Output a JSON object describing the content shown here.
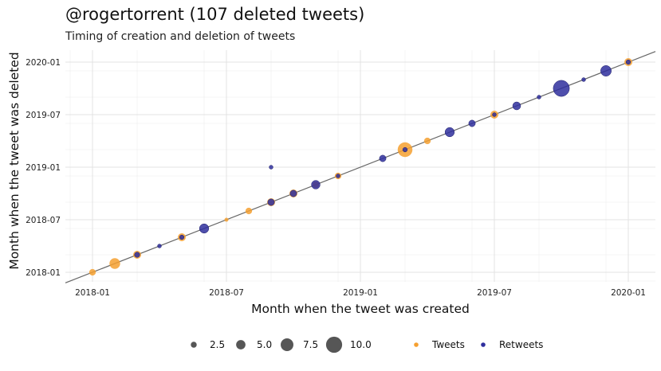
{
  "chart_data": {
    "type": "scatter",
    "title": "@rogertorrent (107 deleted tweets)",
    "subtitle": "Timing of creation and deletion of tweets",
    "xlabel": "Month when the tweet was created",
    "ylabel": "Month when the tweet was deleted",
    "x_ticks": [
      "2018-01",
      "2018-07",
      "2019-01",
      "2019-07",
      "2020-01"
    ],
    "y_ticks": [
      "2018-01",
      "2018-07",
      "2019-01",
      "2019-07",
      "2020-01"
    ],
    "xlim": [
      "2017-11",
      "2020-02"
    ],
    "ylim": [
      "2017-12",
      "2020-02"
    ],
    "reference_line": "y = x",
    "grid": true,
    "legend_position": "bottom",
    "size_legend": {
      "values": [
        2.5,
        5.0,
        7.5,
        10.0
      ],
      "labels": [
        "2.5",
        "5.0",
        "7.5",
        "10.0"
      ]
    },
    "series": [
      {
        "name": "Tweets",
        "color": "#f5a030",
        "points": [
          {
            "x": "2018-01",
            "y": "2018-01",
            "size": 3
          },
          {
            "x": "2018-02",
            "y": "2018-02",
            "size": 6
          },
          {
            "x": "2018-03",
            "y": "2018-03",
            "size": 4
          },
          {
            "x": "2018-05",
            "y": "2018-05",
            "size": 4
          },
          {
            "x": "2018-07",
            "y": "2018-07",
            "size": 1
          },
          {
            "x": "2018-08",
            "y": "2018-08",
            "size": 3
          },
          {
            "x": "2018-09",
            "y": "2018-09",
            "size": 4
          },
          {
            "x": "2018-10",
            "y": "2018-10",
            "size": 4
          },
          {
            "x": "2018-11",
            "y": "2018-11",
            "size": 3
          },
          {
            "x": "2018-12",
            "y": "2018-12",
            "size": 3
          },
          {
            "x": "2019-03",
            "y": "2019-03",
            "size": 9
          },
          {
            "x": "2019-04",
            "y": "2019-04",
            "size": 3
          },
          {
            "x": "2019-07",
            "y": "2019-07",
            "size": 4
          },
          {
            "x": "2020-01",
            "y": "2020-01",
            "size": 4
          }
        ]
      },
      {
        "name": "Retweets",
        "color": "#2f2f9e",
        "points": [
          {
            "x": "2018-03",
            "y": "2018-03",
            "size": 2
          },
          {
            "x": "2018-04",
            "y": "2018-04",
            "size": 1
          },
          {
            "x": "2018-05",
            "y": "2018-05",
            "size": 1.5
          },
          {
            "x": "2018-06",
            "y": "2018-06",
            "size": 5
          },
          {
            "x": "2018-09",
            "y": "2018-09",
            "size": 3
          },
          {
            "x": "2018-09",
            "y": "2019-01",
            "size": 1
          },
          {
            "x": "2018-10",
            "y": "2018-10",
            "size": 3
          },
          {
            "x": "2018-11",
            "y": "2018-11",
            "size": 4.5
          },
          {
            "x": "2018-12",
            "y": "2018-12",
            "size": 1
          },
          {
            "x": "2019-02",
            "y": "2019-02",
            "size": 3
          },
          {
            "x": "2019-03",
            "y": "2019-03",
            "size": 1.5
          },
          {
            "x": "2019-05",
            "y": "2019-05",
            "size": 5
          },
          {
            "x": "2019-06",
            "y": "2019-06",
            "size": 3
          },
          {
            "x": "2019-07",
            "y": "2019-07",
            "size": 1
          },
          {
            "x": "2019-08",
            "y": "2019-08",
            "size": 4
          },
          {
            "x": "2019-09",
            "y": "2019-09",
            "size": 1
          },
          {
            "x": "2019-10",
            "y": "2019-10",
            "size": 10
          },
          {
            "x": "2019-11",
            "y": "2019-11",
            "size": 1
          },
          {
            "x": "2019-12",
            "y": "2019-12",
            "size": 6
          },
          {
            "x": "2020-01",
            "y": "2020-01",
            "size": 1.5
          }
        ]
      }
    ]
  }
}
